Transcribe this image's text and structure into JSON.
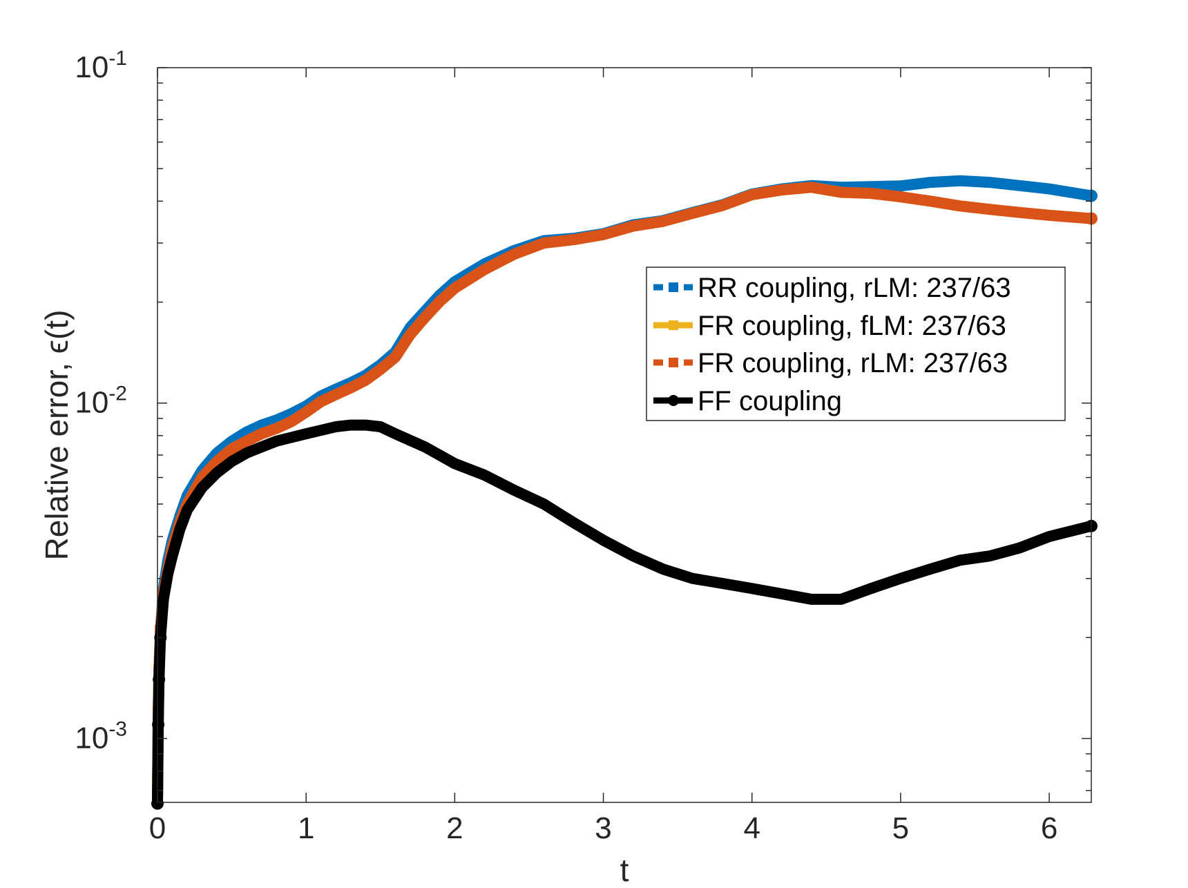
{
  "chart_data": {
    "type": "line",
    "xlabel": "t",
    "ylabel": "Relative error, ϵ(t)",
    "xlim": [
      0,
      6.283
    ],
    "ylim": [
      0.000645,
      0.1
    ],
    "yscale": "log",
    "grid": false,
    "legend_position": "right",
    "x_ticks": [
      0,
      1,
      2,
      3,
      4,
      5,
      6
    ],
    "y_ticks": [
      {
        "value": 0.1,
        "base": "10",
        "exp": "-1"
      },
      {
        "value": 0.01,
        "base": "10",
        "exp": "-2"
      },
      {
        "value": 0.001,
        "base": "10",
        "exp": "-3"
      }
    ],
    "series": [
      {
        "name": "RR coupling, rLM: 237/63",
        "color": "#0072BD",
        "x": [
          0,
          0.005,
          0.01,
          0.02,
          0.04,
          0.07,
          0.1,
          0.15,
          0.2,
          0.3,
          0.4,
          0.5,
          0.6,
          0.7,
          0.8,
          0.9,
          1.0,
          1.1,
          1.2,
          1.3,
          1.4,
          1.5,
          1.6,
          1.7,
          1.8,
          1.9,
          2.0,
          2.2,
          2.4,
          2.6,
          2.8,
          3.0,
          3.2,
          3.4,
          3.6,
          3.8,
          4.0,
          4.2,
          4.4,
          4.6,
          4.8,
          5.0,
          5.2,
          5.4,
          5.6,
          5.8,
          6.0,
          6.283
        ],
        "y": [
          0.00065,
          0.0012,
          0.0016,
          0.0021,
          0.0028,
          0.0034,
          0.0039,
          0.0046,
          0.0053,
          0.0063,
          0.0071,
          0.0077,
          0.0082,
          0.0086,
          0.0089,
          0.0093,
          0.0098,
          0.0105,
          0.011,
          0.0115,
          0.0121,
          0.013,
          0.0142,
          0.0168,
          0.0188,
          0.021,
          0.023,
          0.026,
          0.0285,
          0.0305,
          0.031,
          0.032,
          0.034,
          0.035,
          0.037,
          0.039,
          0.042,
          0.0435,
          0.0445,
          0.044,
          0.0442,
          0.0444,
          0.0455,
          0.046,
          0.0455,
          0.0445,
          0.0435,
          0.0415
        ]
      },
      {
        "name": "FR coupling, fLM: 237/63",
        "color": "#EDB120",
        "x": [
          0,
          0.005,
          0.01,
          0.02,
          0.04,
          0.07,
          0.1,
          0.15,
          0.2,
          0.3,
          0.4,
          0.5,
          0.6,
          0.7,
          0.8,
          0.9,
          1.0,
          1.1,
          1.2,
          1.3,
          1.4,
          1.5,
          1.6,
          1.7,
          1.8,
          1.9,
          2.0,
          2.2,
          2.4,
          2.6,
          2.8,
          3.0,
          3.2,
          3.4,
          3.6,
          3.8,
          4.0,
          4.2,
          4.4,
          4.6,
          4.8,
          5.0,
          5.2,
          5.4,
          5.6,
          5.8,
          6.0,
          6.283
        ],
        "y": [
          0.00065,
          0.0012,
          0.0016,
          0.0021,
          0.0027,
          0.0032,
          0.0037,
          0.0044,
          0.005,
          0.006,
          0.0067,
          0.0073,
          0.0077,
          0.0081,
          0.0084,
          0.0088,
          0.0094,
          0.0101,
          0.0106,
          0.0111,
          0.0117,
          0.0126,
          0.0137,
          0.016,
          0.018,
          0.0201,
          0.022,
          0.025,
          0.0278,
          0.03,
          0.0307,
          0.0318,
          0.0337,
          0.0348,
          0.0368,
          0.0388,
          0.0418,
          0.0432,
          0.044,
          0.0425,
          0.0422,
          0.0412,
          0.04,
          0.0387,
          0.0378,
          0.037,
          0.0363,
          0.0355
        ]
      },
      {
        "name": "FR coupling, rLM: 237/63",
        "color": "#D95319",
        "x": [
          0,
          0.005,
          0.01,
          0.02,
          0.04,
          0.07,
          0.1,
          0.15,
          0.2,
          0.3,
          0.4,
          0.5,
          0.6,
          0.7,
          0.8,
          0.9,
          1.0,
          1.1,
          1.2,
          1.3,
          1.4,
          1.5,
          1.6,
          1.7,
          1.8,
          1.9,
          2.0,
          2.2,
          2.4,
          2.6,
          2.8,
          3.0,
          3.2,
          3.4,
          3.6,
          3.8,
          4.0,
          4.2,
          4.4,
          4.6,
          4.8,
          5.0,
          5.2,
          5.4,
          5.6,
          5.8,
          6.0,
          6.283
        ],
        "y": [
          0.00065,
          0.0012,
          0.0016,
          0.0021,
          0.0027,
          0.0032,
          0.0037,
          0.0044,
          0.005,
          0.006,
          0.0067,
          0.0073,
          0.0077,
          0.0081,
          0.0084,
          0.0088,
          0.0094,
          0.0101,
          0.0106,
          0.0111,
          0.0117,
          0.0126,
          0.0137,
          0.016,
          0.018,
          0.0201,
          0.022,
          0.025,
          0.0278,
          0.03,
          0.0307,
          0.0318,
          0.0337,
          0.0348,
          0.0368,
          0.0388,
          0.0418,
          0.0432,
          0.044,
          0.0425,
          0.0422,
          0.0412,
          0.04,
          0.0387,
          0.0378,
          0.037,
          0.0363,
          0.0355
        ]
      },
      {
        "name": "FF coupling",
        "color": "#000000",
        "x": [
          0,
          0.005,
          0.01,
          0.02,
          0.04,
          0.07,
          0.1,
          0.15,
          0.2,
          0.3,
          0.4,
          0.5,
          0.6,
          0.7,
          0.8,
          0.9,
          1.0,
          1.1,
          1.2,
          1.3,
          1.4,
          1.5,
          1.6,
          1.8,
          2.0,
          2.2,
          2.4,
          2.6,
          2.8,
          3.0,
          3.2,
          3.4,
          3.6,
          3.8,
          4.0,
          4.2,
          4.4,
          4.6,
          4.8,
          5.0,
          5.2,
          5.4,
          5.6,
          5.8,
          6.0,
          6.283
        ],
        "y": [
          0.00064,
          0.0011,
          0.0015,
          0.002,
          0.0026,
          0.0031,
          0.0035,
          0.0042,
          0.0048,
          0.0056,
          0.0062,
          0.0067,
          0.0071,
          0.0074,
          0.0077,
          0.0079,
          0.0081,
          0.0083,
          0.0085,
          0.0086,
          0.0086,
          0.0085,
          0.0081,
          0.0074,
          0.0066,
          0.0061,
          0.0055,
          0.005,
          0.0044,
          0.0039,
          0.0035,
          0.0032,
          0.003,
          0.0029,
          0.0028,
          0.0027,
          0.0026,
          0.0026,
          0.0028,
          0.003,
          0.0032,
          0.0034,
          0.0035,
          0.0037,
          0.004,
          0.0043
        ]
      }
    ]
  }
}
